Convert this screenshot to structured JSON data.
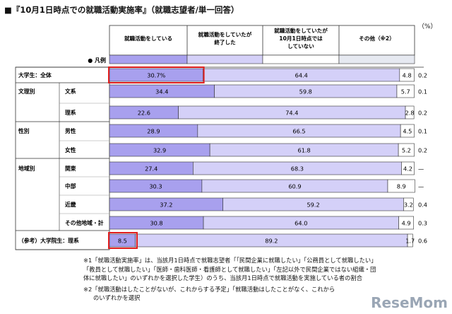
{
  "title": "■『10月1日時点での就職活動実施率』（就職志望者/単一回答）",
  "unit": "（%）",
  "legend": {
    "label": "凡例",
    "items": [
      {
        "text": "就職活動をしている",
        "color": "#a8a0ee"
      },
      {
        "text": "就職活動をしていたが\n終了した",
        "color": "#d4d0f8"
      },
      {
        "text": "就職活動をしていたが\n10月1日時点では\nしていない",
        "color": "#ffffff"
      },
      {
        "text": "その他（※2）",
        "color": "#e6e9f1"
      }
    ]
  },
  "chart_data": {
    "type": "bar",
    "stacked": true,
    "orientation": "horizontal",
    "xlim": [
      0,
      100
    ],
    "series_names": [
      "就職活動をしている",
      "就職活動をしていたが終了した",
      "就職活動をしていたが10月1日時点ではしていない",
      "その他（※2）"
    ],
    "colors": [
      "#a8a0ee",
      "#d4d0f8",
      "#ffffff",
      "#e6e9f1"
    ],
    "rows": [
      {
        "group": "大学生：全体",
        "category": "",
        "values": [
          30.7,
          64.4,
          4.8,
          0.2
        ],
        "labels": [
          "30.7%",
          "64.4",
          "4.8",
          "0.2"
        ],
        "highlight": true
      },
      {
        "group": "文理別",
        "category": "文系",
        "values": [
          34.4,
          59.8,
          5.7,
          0.1
        ],
        "labels": [
          "34.4",
          "59.8",
          "5.7",
          "0.1"
        ]
      },
      {
        "group": "",
        "category": "理系",
        "values": [
          22.6,
          74.4,
          2.8,
          0.2
        ],
        "labels": [
          "22.6",
          "74.4",
          "2.8",
          "0.2"
        ]
      },
      {
        "group": "性別",
        "category": "男性",
        "values": [
          28.9,
          66.5,
          4.5,
          0.1
        ],
        "labels": [
          "28.9",
          "66.5",
          "4.5",
          "0.1"
        ]
      },
      {
        "group": "",
        "category": "女性",
        "values": [
          32.9,
          61.8,
          5.2,
          0.2
        ],
        "labels": [
          "32.9",
          "61.8",
          "5.2",
          "0.2"
        ]
      },
      {
        "group": "地域別",
        "category": "関東",
        "values": [
          27.4,
          68.3,
          4.2,
          0
        ],
        "labels": [
          "27.4",
          "68.3",
          "4.2",
          "—"
        ]
      },
      {
        "group": "",
        "category": "中部",
        "values": [
          30.3,
          60.9,
          8.9,
          0
        ],
        "labels": [
          "30.3",
          "60.9",
          "8.9",
          "—"
        ]
      },
      {
        "group": "",
        "category": "近畿",
        "values": [
          37.2,
          59.2,
          3.2,
          0.4
        ],
        "labels": [
          "37.2",
          "59.2",
          "3.2",
          "0.4"
        ]
      },
      {
        "group": "",
        "category": "その他地域・計",
        "values": [
          30.8,
          64.0,
          4.9,
          0.3
        ],
        "labels": [
          "30.8",
          "64.0",
          "4.9",
          "0.3"
        ]
      },
      {
        "group": "（参考）大学院生：理系",
        "category": "",
        "values": [
          8.5,
          89.2,
          1.7,
          0.6
        ],
        "labels": [
          "8.5",
          "89.2",
          "1.7",
          "0.6"
        ],
        "highlight": true
      }
    ]
  },
  "notes": {
    "line1": "※1「就職活動実施率」は、当該月1日時点で就職志望者「「民間企業に就職したい」「公務員として就職したい」",
    "line2": "「教員として就職したい」「医師・歯科医師・看護師として就職したい」「左記以外で民間企業ではない組織・団",
    "line3": "体に就職したい」のいずれかを選択した学生）のうち、当該月1日時点で就職活動を実施している者の割合",
    "line4": "※2「就職活動はしたことがないが、これからする予定」「就職活動はしたことがなく、これから",
    "line5": "のいずれかを選択"
  },
  "watermark": "ReseMom"
}
